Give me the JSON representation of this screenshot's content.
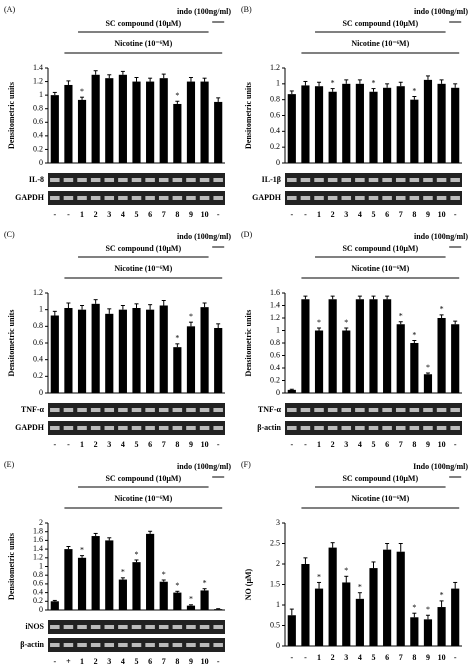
{
  "chart_data": [
    {
      "type": "bar",
      "panel_label": "(A)",
      "title": "SC compound (10μM)",
      "subtitle": "Nicotine (10⁻⁶M)",
      "annotation": "indo (100ng/ml)",
      "y_label": "Densitometric units",
      "categories": [
        "-",
        "-",
        "1",
        "2",
        "3",
        "4",
        "5",
        "6",
        "7",
        "8",
        "9",
        "10",
        "-"
      ],
      "values": [
        1.0,
        1.15,
        0.93,
        1.3,
        1.25,
        1.3,
        1.2,
        1.2,
        1.25,
        0.87,
        1.2,
        1.2,
        0.9
      ],
      "errors": [
        0.04,
        0.06,
        0.04,
        0.06,
        0.05,
        0.05,
        0.06,
        0.05,
        0.06,
        0.04,
        0.06,
        0.05,
        0.06
      ],
      "significance": [
        null,
        null,
        "*",
        null,
        null,
        null,
        null,
        null,
        null,
        "*",
        null,
        null,
        null
      ],
      "gel_labels": [
        "IL-8",
        "GAPDH"
      ],
      "color": "#000000",
      "ylim": [
        0,
        1.4
      ],
      "yticks": [
        0,
        0.2,
        0.4,
        0.6,
        0.8,
        1,
        1.2,
        1.4
      ]
    },
    {
      "type": "bar",
      "panel_label": "(B)",
      "title": "SC compound (10μM)",
      "subtitle": "Nicotine (10⁻⁶M)",
      "annotation": "indo (100ng/ml)",
      "y_label": "Densitometric units",
      "categories": [
        "-",
        "-",
        "1",
        "2",
        "3",
        "4",
        "5",
        "6",
        "7",
        "8",
        "9",
        "10",
        "-"
      ],
      "values": [
        0.87,
        0.98,
        0.97,
        0.9,
        1.0,
        1.0,
        0.9,
        0.95,
        0.97,
        0.8,
        1.05,
        1.0,
        0.95
      ],
      "errors": [
        0.04,
        0.05,
        0.05,
        0.04,
        0.05,
        0.05,
        0.04,
        0.05,
        0.05,
        0.04,
        0.05,
        0.05,
        0.05
      ],
      "significance": [
        null,
        null,
        null,
        "*",
        null,
        null,
        "*",
        null,
        null,
        "*",
        null,
        null,
        null
      ],
      "gel_labels": [
        "IL-1β",
        "GAPDH"
      ],
      "color": "#000000",
      "ylim": [
        0,
        1.2
      ],
      "yticks": [
        0,
        0.2,
        0.4,
        0.6,
        0.8,
        1,
        1.2
      ]
    },
    {
      "type": "bar",
      "panel_label": "(C)",
      "title": "SC compound (10μM)",
      "subtitle": "Nicotine (10⁻⁶M)",
      "annotation": "indo (100ng/ml)",
      "y_label": "Densitometric units",
      "categories": [
        "-",
        "-",
        "1",
        "2",
        "3",
        "4",
        "5",
        "6",
        "7",
        "8",
        "9",
        "10",
        "-"
      ],
      "values": [
        0.93,
        1.02,
        1.0,
        1.07,
        0.95,
        1.0,
        1.02,
        1.0,
        1.05,
        0.55,
        0.8,
        1.03,
        0.78
      ],
      "errors": [
        0.05,
        0.06,
        0.05,
        0.05,
        0.06,
        0.05,
        0.05,
        0.06,
        0.06,
        0.04,
        0.05,
        0.05,
        0.05
      ],
      "significance": [
        null,
        null,
        null,
        null,
        null,
        null,
        null,
        null,
        null,
        "*",
        "*",
        null,
        null
      ],
      "gel_labels": [
        "TNF-α",
        "GAPDH"
      ],
      "color": "#000000",
      "ylim": [
        0,
        1.2
      ],
      "yticks": [
        0,
        0.2,
        0.4,
        0.6,
        0.8,
        1,
        1.2
      ]
    },
    {
      "type": "bar",
      "panel_label": "(D)",
      "title": "SC compound (10μM)",
      "subtitle": "Nicotine (10⁻⁶M)",
      "annotation": "indo (100ng/ml)",
      "y_label": "Densitometric units",
      "categories": [
        "-",
        "-",
        "1",
        "2",
        "3",
        "4",
        "5",
        "6",
        "7",
        "8",
        "9",
        "10",
        "-"
      ],
      "values": [
        0.05,
        1.5,
        1.0,
        1.5,
        1.0,
        1.5,
        1.5,
        1.5,
        1.1,
        0.8,
        0.3,
        1.2,
        1.1
      ],
      "errors": [
        0.01,
        0.05,
        0.04,
        0.05,
        0.04,
        0.05,
        0.05,
        0.05,
        0.04,
        0.04,
        0.02,
        0.05,
        0.05
      ],
      "significance": [
        null,
        null,
        "*",
        null,
        "*",
        null,
        null,
        null,
        "*",
        "*",
        "*",
        "*",
        null
      ],
      "gel_labels": [
        "TNF-α",
        "β-actin"
      ],
      "color": "#000000",
      "ylim": [
        0,
        1.6
      ],
      "yticks": [
        0,
        0.2,
        0.4,
        0.6,
        0.8,
        1,
        1.2,
        1.4,
        1.6
      ]
    },
    {
      "type": "bar",
      "panel_label": "(E)",
      "title": "SC compound (10μM)",
      "subtitle": "Nicotine (10⁻⁶M)",
      "annotation": "indo (100ng/ml)",
      "y_label": "Densitometric units",
      "categories": [
        "-",
        "+",
        "1",
        "2",
        "3",
        "4",
        "5",
        "6",
        "7",
        "8",
        "9",
        "10",
        "-"
      ],
      "values": [
        0.2,
        1.4,
        1.2,
        1.7,
        1.6,
        0.7,
        1.1,
        1.75,
        0.65,
        0.4,
        0.1,
        0.45,
        0.02
      ],
      "errors": [
        0.02,
        0.06,
        0.05,
        0.06,
        0.06,
        0.04,
        0.05,
        0.06,
        0.04,
        0.03,
        0.02,
        0.04,
        0.01
      ],
      "significance": [
        null,
        null,
        "*",
        null,
        null,
        "*",
        "*",
        null,
        "*",
        "*",
        "*",
        "*",
        null
      ],
      "gel_labels": [
        "iNOS",
        "β-actin"
      ],
      "color": "#000000",
      "ylim": [
        0,
        2
      ],
      "yticks": [
        0,
        0.2,
        0.4,
        0.6,
        0.8,
        1,
        1.2,
        1.4,
        1.6,
        1.8,
        2
      ]
    },
    {
      "type": "bar",
      "panel_label": "(F)",
      "title": "SC compound (10μM)",
      "subtitle": "Nicotine (10⁻⁶M)",
      "annotation": "Indo (100ng/ml)",
      "y_label": "NO (μM)",
      "categories": [
        "-",
        "-",
        "1",
        "2",
        "3",
        "4",
        "5",
        "6",
        "7",
        "8",
        "9",
        "10",
        "-"
      ],
      "values": [
        0.75,
        2.0,
        1.4,
        2.4,
        1.55,
        1.15,
        1.9,
        2.35,
        2.3,
        0.7,
        0.65,
        0.95,
        1.4
      ],
      "errors": [
        0.15,
        0.15,
        0.15,
        0.12,
        0.15,
        0.15,
        0.15,
        0.15,
        0.2,
        0.1,
        0.1,
        0.15,
        0.15
      ],
      "significance": [
        null,
        null,
        "*",
        null,
        "*",
        "*",
        null,
        null,
        null,
        "*",
        "*",
        "*",
        null
      ],
      "color": "#000000",
      "ylim": [
        0,
        3
      ],
      "yticks": [
        0,
        0.5,
        1,
        1.5,
        2,
        2.5,
        3
      ]
    }
  ]
}
